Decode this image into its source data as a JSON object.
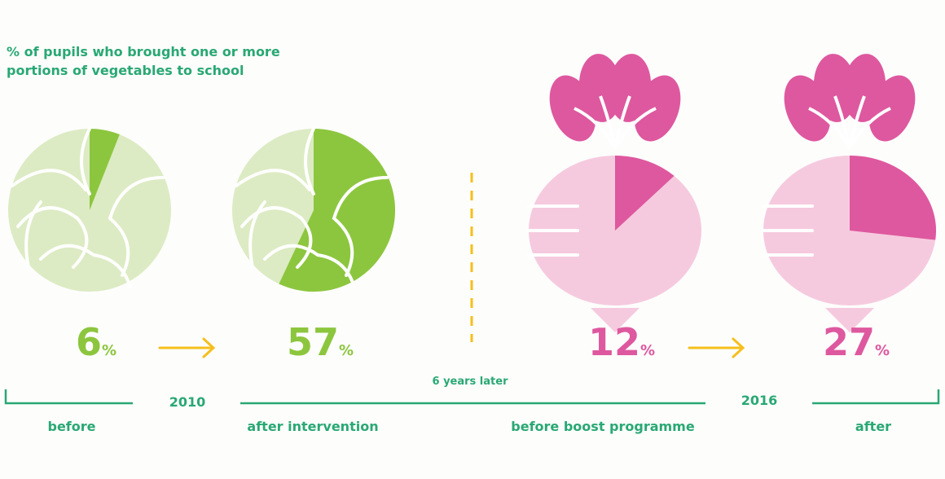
{
  "chart_data": {
    "type": "pictograph",
    "title": "% of pupils who brought one or more portions of vegetables to school",
    "categories": [
      "before",
      "after intervention",
      "before boost programme",
      "after"
    ],
    "values": [
      6,
      57,
      12,
      27
    ],
    "unit": "%",
    "colors": [
      "#8cc63e",
      "#8cc63e",
      "#de589f",
      "#de589f"
    ],
    "icons": [
      "cabbage",
      "cabbage",
      "turnip",
      "turnip"
    ],
    "years": [
      "2010",
      "2016"
    ],
    "annotation": "6 years later"
  }
}
